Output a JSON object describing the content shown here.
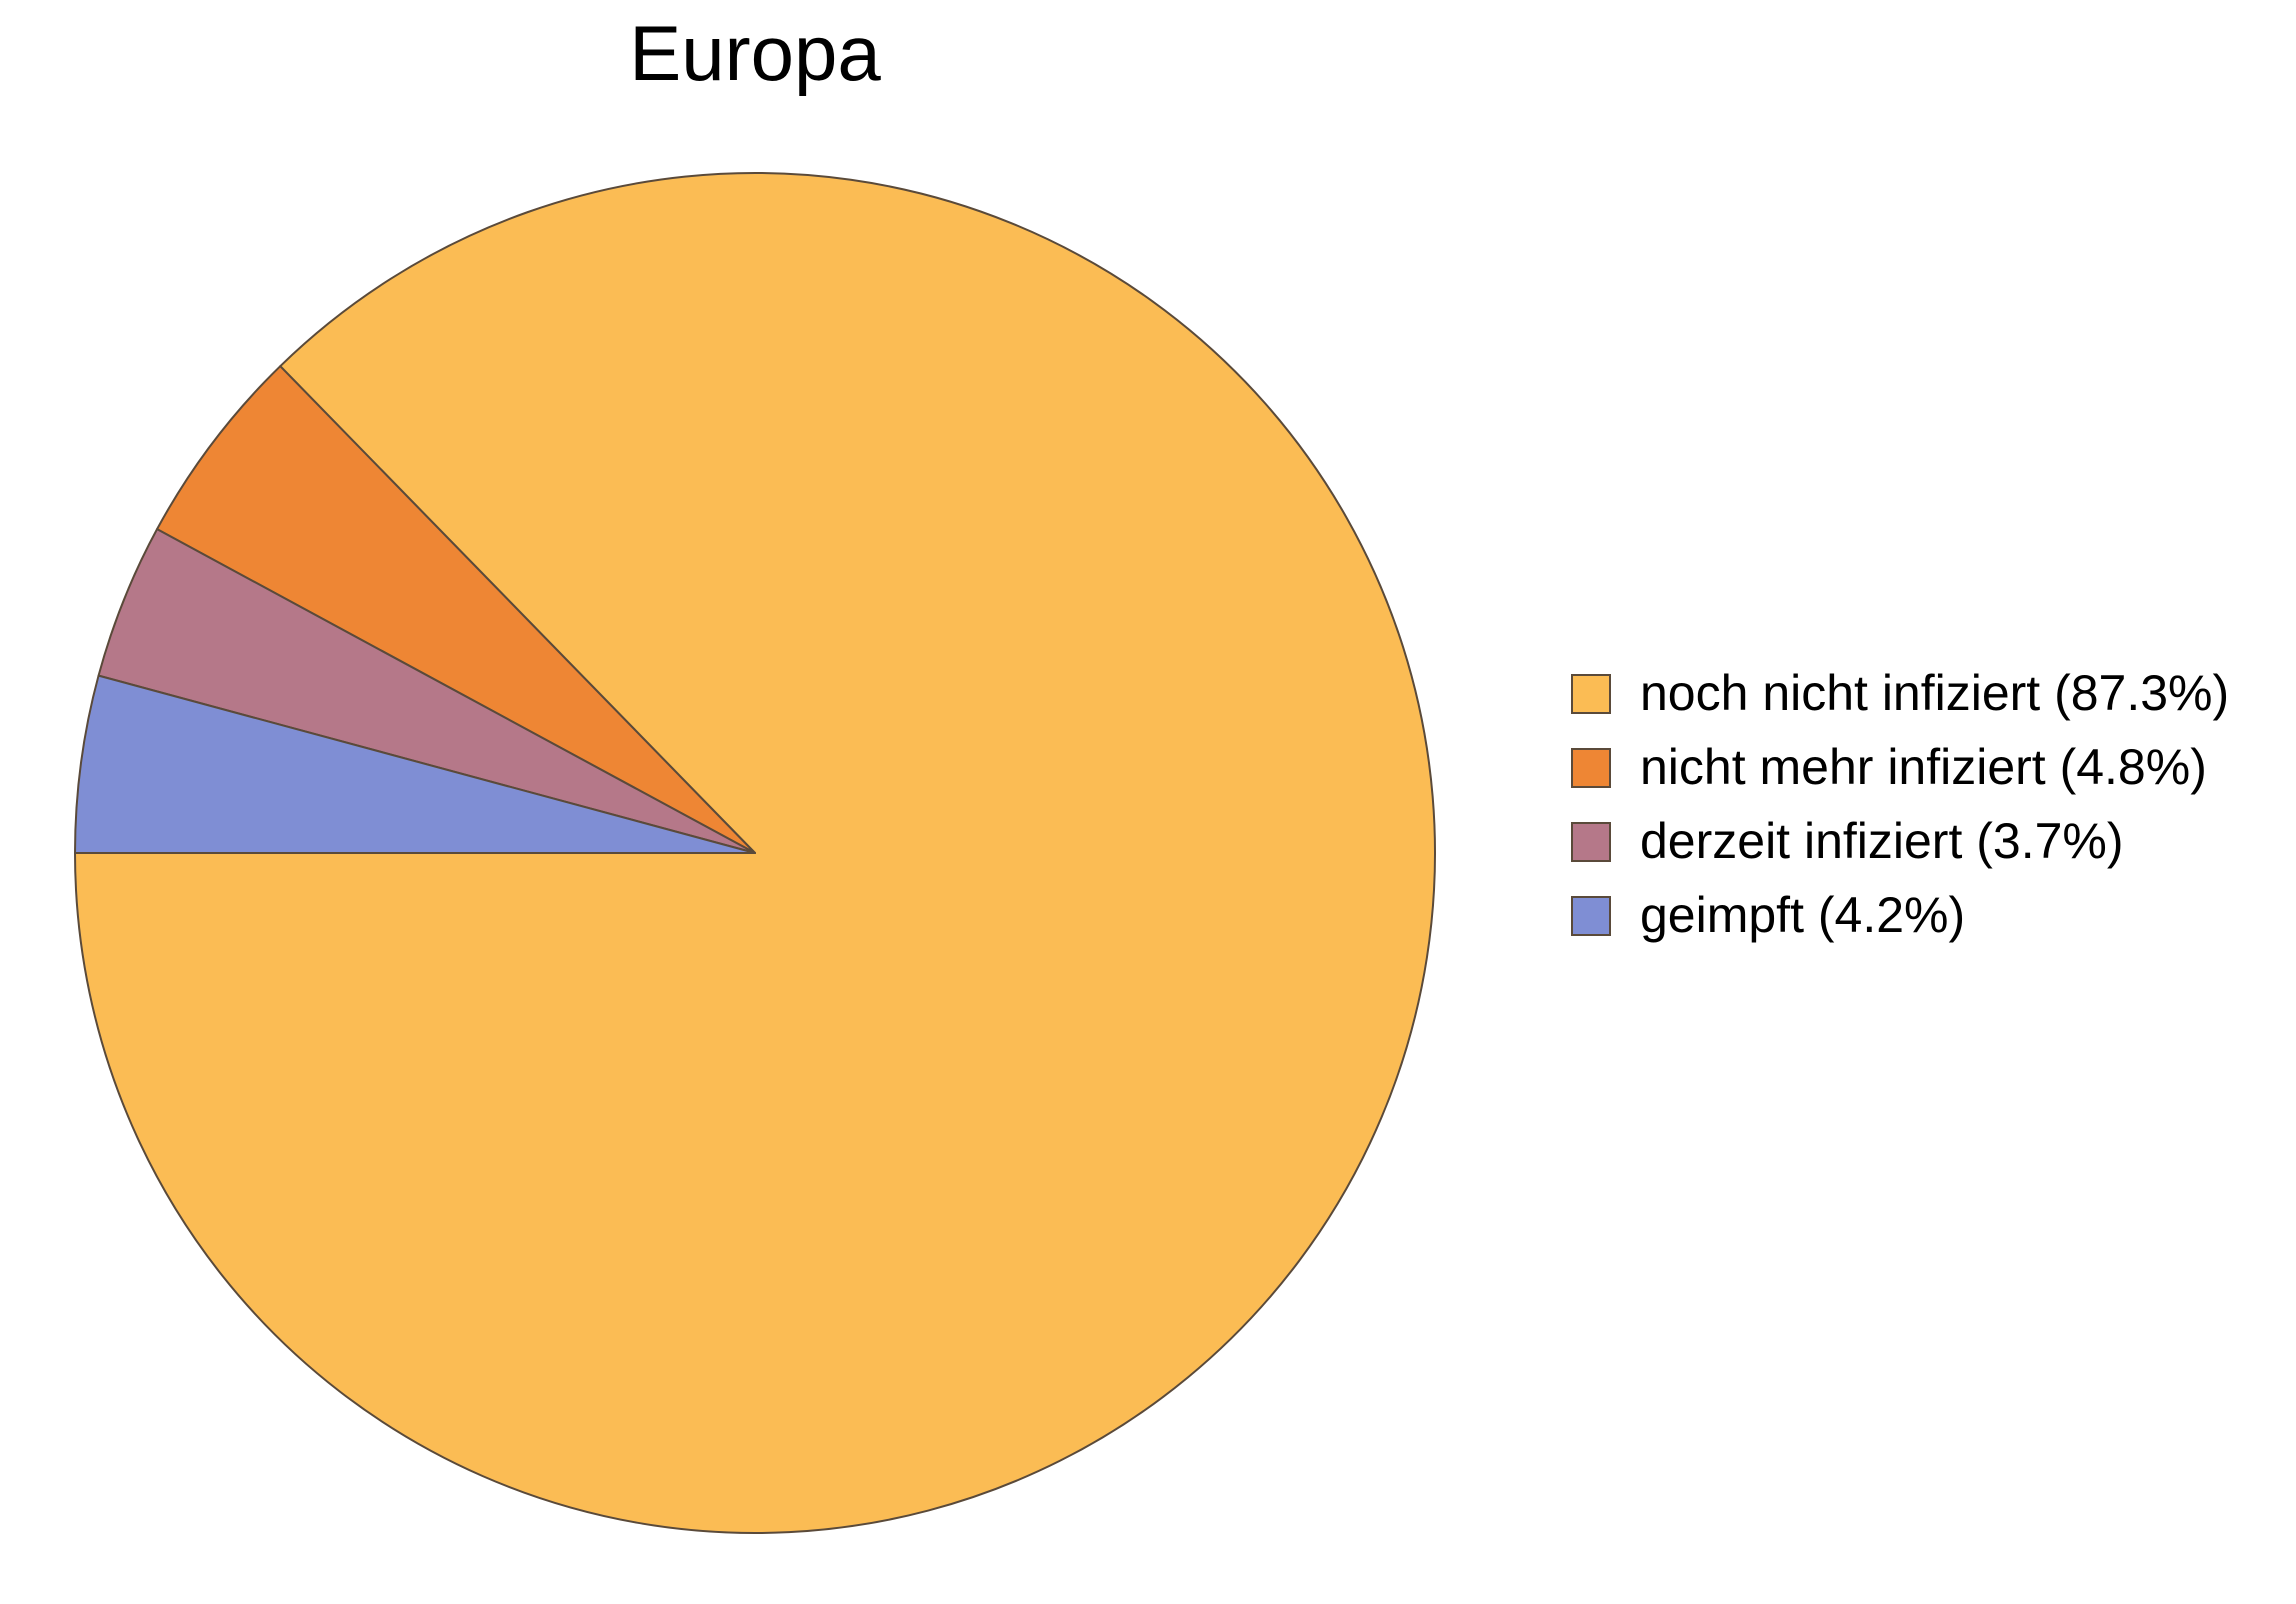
{
  "chart_data": {
    "type": "pie",
    "title": "Europa",
    "start_angle_deg": 180,
    "direction": "counterclockwise",
    "legend_position": "right",
    "slices": [
      {
        "label": "noch nicht infiziert (87.3%)",
        "value": 87.3,
        "color": "#FBBC54"
      },
      {
        "label": "nicht mehr infiziert (4.8%)",
        "value": 4.8,
        "color": "#EE8634"
      },
      {
        "label": "derzeit infiziert (3.7%)",
        "value": 3.7,
        "color": "#B57889"
      },
      {
        "label": "geimpft (4.2%)",
        "value": 4.2,
        "color": "#7F8ED4"
      }
    ]
  }
}
